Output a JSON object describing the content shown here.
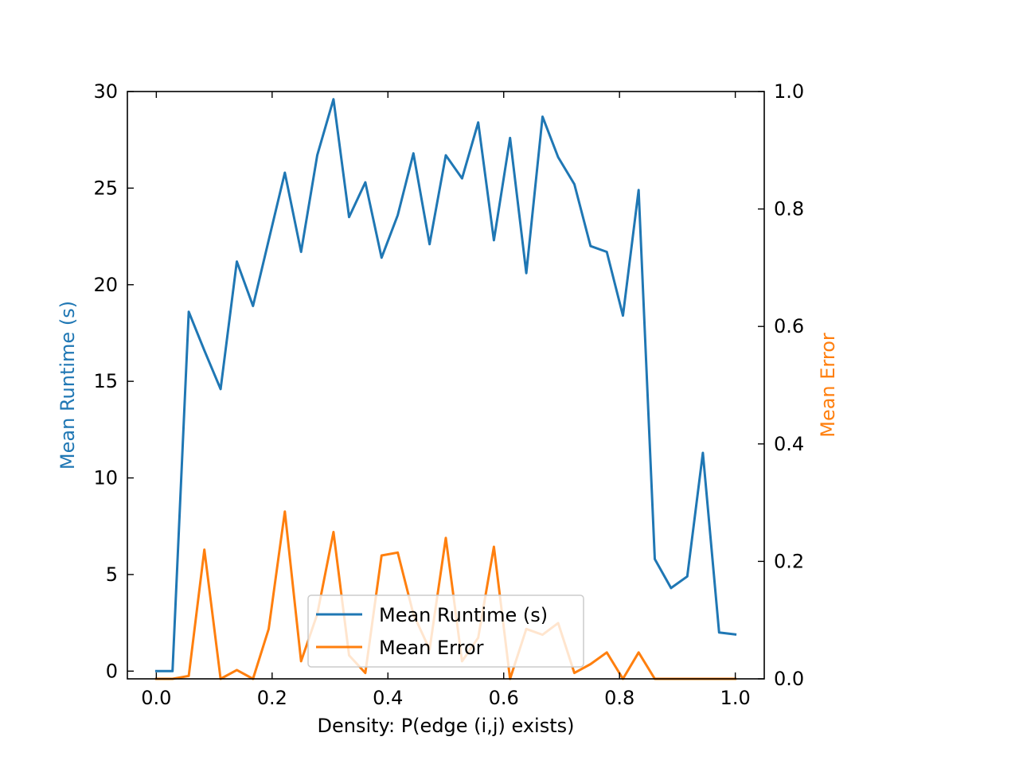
{
  "chart_data": {
    "type": "line",
    "xlabel": "Density: P(edge (i,j) exists)",
    "ylabel": "Mean Runtime (s)",
    "y2label": "Mean Error",
    "xlim": [
      -0.05,
      1.05
    ],
    "ylim": [
      -0.4,
      30
    ],
    "y2lim": [
      0,
      1.0
    ],
    "xticks": [
      "0.0",
      "0.2",
      "0.4",
      "0.6",
      "0.8",
      "1.0"
    ],
    "yticks": [
      "0",
      "5",
      "10",
      "15",
      "20",
      "25",
      "30"
    ],
    "y2ticks": [
      "0.0",
      "0.2",
      "0.4",
      "0.6",
      "0.8",
      "1.0"
    ],
    "grid": false,
    "legend_position": "bottom-center",
    "x": [
      0.0,
      0.028,
      0.056,
      0.083,
      0.111,
      0.139,
      0.167,
      0.194,
      0.222,
      0.25,
      0.278,
      0.306,
      0.333,
      0.361,
      0.389,
      0.417,
      0.444,
      0.472,
      0.5,
      0.528,
      0.556,
      0.583,
      0.611,
      0.639,
      0.667,
      0.694,
      0.722,
      0.75,
      0.778,
      0.806,
      0.833,
      0.861,
      0.889,
      0.917,
      0.944,
      0.972,
      1.0
    ],
    "series": [
      {
        "name": "Mean Runtime (s)",
        "axis": "left",
        "color": "#1f77b4",
        "values": [
          0.0,
          0.0,
          18.6,
          16.6,
          14.6,
          21.2,
          18.9,
          22.3,
          25.8,
          21.7,
          26.7,
          29.6,
          23.5,
          25.3,
          21.4,
          23.6,
          26.8,
          22.1,
          26.7,
          25.5,
          28.4,
          22.3,
          27.6,
          20.6,
          28.7,
          26.6,
          25.2,
          22.0,
          21.7,
          18.4,
          24.9,
          5.8,
          4.3,
          4.9,
          11.3,
          2.0,
          1.9
        ]
      },
      {
        "name": "Mean Error",
        "axis": "right",
        "color": "#ff7f0e",
        "values": [
          0.0,
          0.0,
          0.005,
          0.22,
          0.0,
          0.015,
          0.0,
          0.085,
          0.285,
          0.03,
          0.11,
          0.25,
          0.04,
          0.01,
          0.21,
          0.215,
          0.11,
          0.05,
          0.24,
          0.03,
          0.07,
          0.225,
          0.0,
          0.085,
          0.075,
          0.095,
          0.01,
          0.025,
          0.045,
          0.0,
          0.045,
          0.0,
          0.0,
          0.0,
          0.0,
          0.0,
          0.0
        ]
      }
    ]
  }
}
